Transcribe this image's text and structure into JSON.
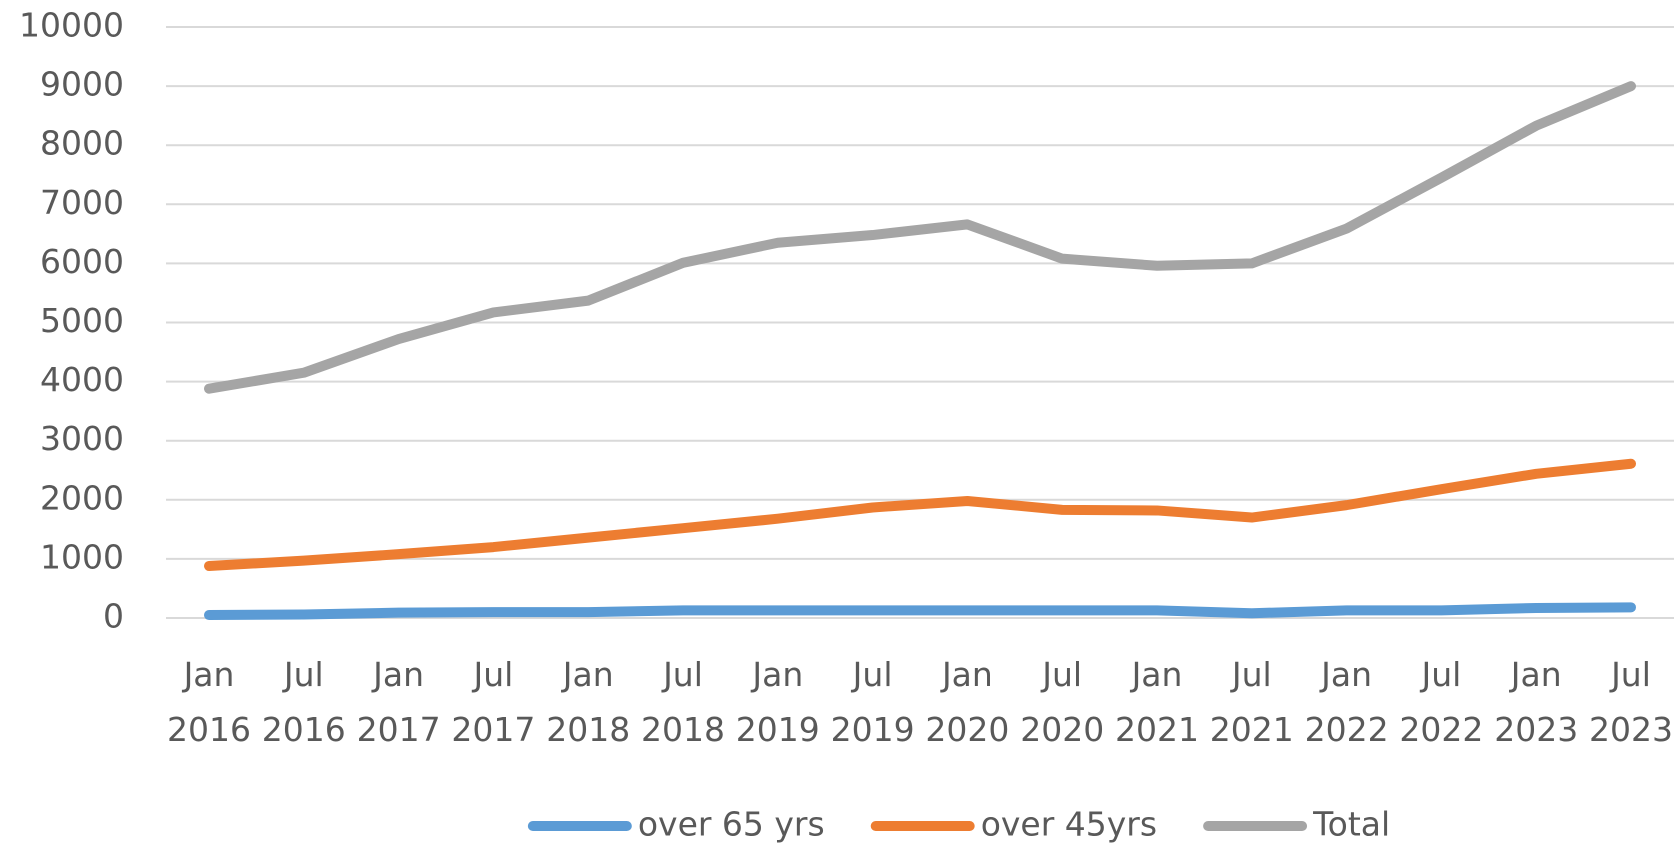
{
  "chart_data": {
    "type": "line",
    "categories": [
      "Jan 2016",
      "Jul 2016",
      "Jan 2017",
      "Jul 2017",
      "Jan 2018",
      "Jul 2018",
      "Jan 2019",
      "Jul 2019",
      "Jan 2020",
      "Jul 2020",
      "Jan 2021",
      "Jul 2021",
      "Jan 2022",
      "Jul 2022",
      "Jan 2023",
      "Jul 2023"
    ],
    "series": [
      {
        "name": "over 65 yrs",
        "color": "#5b9bd5",
        "values": [
          50,
          60,
          90,
          100,
          100,
          130,
          130,
          130,
          130,
          130,
          130,
          80,
          130,
          130,
          170,
          180
        ]
      },
      {
        "name": "over 45yrs",
        "color": "#ed7d31",
        "values": [
          880,
          970,
          1080,
          1200,
          1360,
          1520,
          1680,
          1870,
          1980,
          1830,
          1820,
          1700,
          1910,
          2180,
          2440,
          2610
        ]
      },
      {
        "name": "Total",
        "color": "#a5a5a5",
        "values": [
          3880,
          4150,
          4720,
          5170,
          5370,
          6010,
          6350,
          6480,
          6660,
          6080,
          5960,
          6000,
          6590,
          7450,
          8330,
          9000
        ]
      }
    ],
    "ylim": [
      0,
      10000
    ],
    "yticks": [
      0,
      1000,
      2000,
      3000,
      4000,
      5000,
      6000,
      7000,
      8000,
      9000,
      10000
    ],
    "grid": true,
    "legend": "bottom"
  }
}
